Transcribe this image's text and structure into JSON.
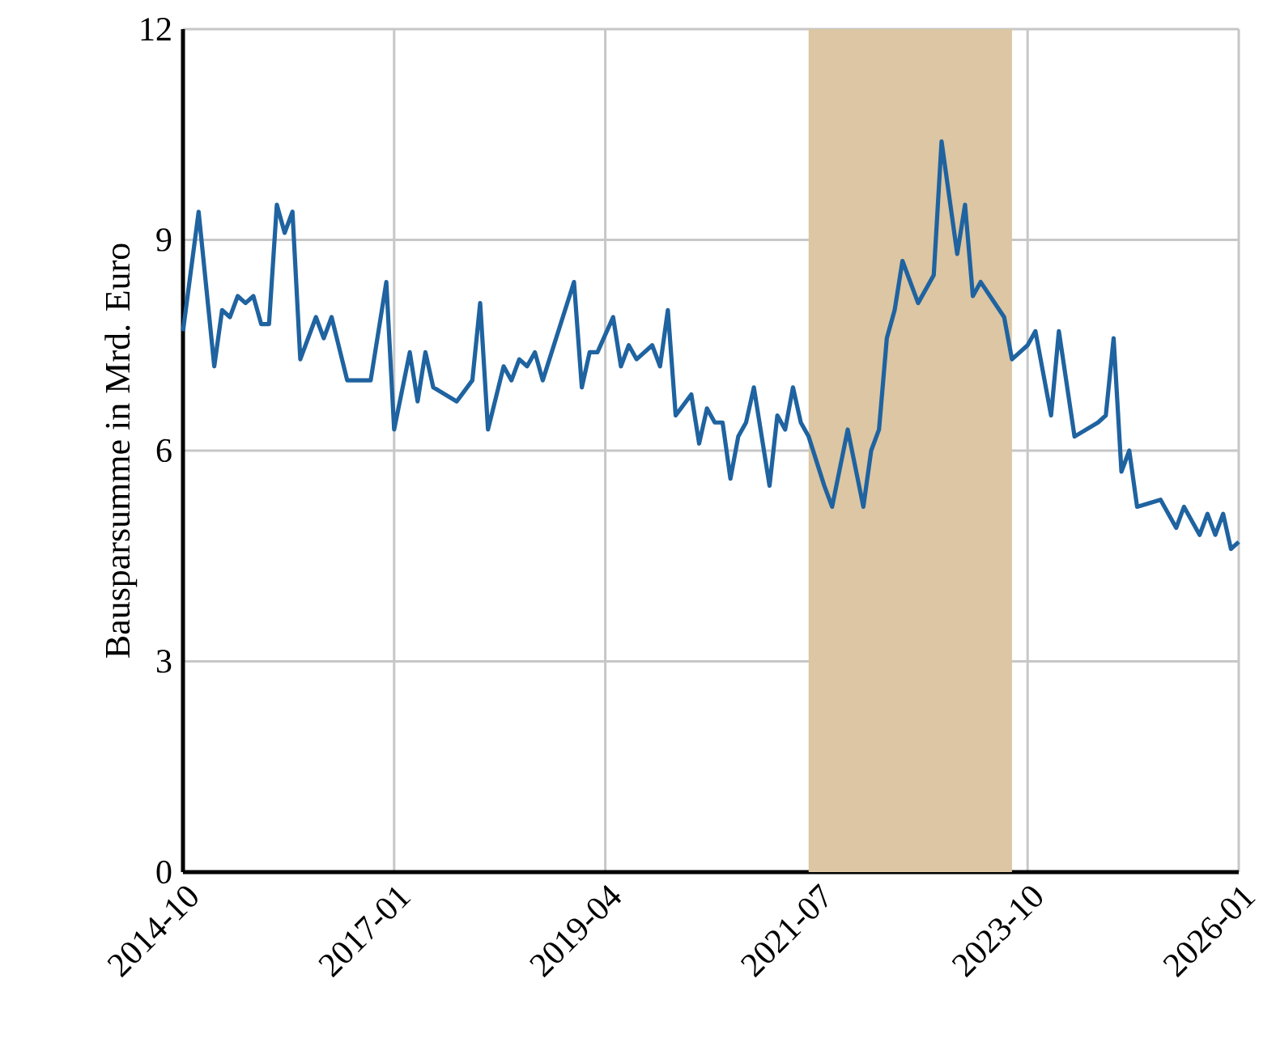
{
  "chart_data": {
    "type": "line",
    "ylabel": "Bausparsumme in Mrd. Euro",
    "x": [
      "2014-10",
      "2014-12",
      "2015-02",
      "2015-03",
      "2015-04",
      "2015-05",
      "2015-06",
      "2015-07",
      "2015-08",
      "2015-09",
      "2015-10",
      "2015-11",
      "2015-12",
      "2016-01",
      "2016-03",
      "2016-04",
      "2016-05",
      "2016-07",
      "2016-09",
      "2016-10",
      "2016-12",
      "2017-01",
      "2017-03",
      "2017-04",
      "2017-05",
      "2017-06",
      "2017-09",
      "2017-11",
      "2017-12",
      "2018-01",
      "2018-03",
      "2018-04",
      "2018-05",
      "2018-06",
      "2018-07",
      "2018-08",
      "2018-12",
      "2019-01",
      "2019-02",
      "2019-03",
      "2019-05",
      "2019-06",
      "2019-07",
      "2019-08",
      "2019-10",
      "2019-11",
      "2019-12",
      "2020-01",
      "2020-03",
      "2020-04",
      "2020-05",
      "2020-06",
      "2020-07",
      "2020-08",
      "2020-09",
      "2020-10",
      "2020-11",
      "2021-01",
      "2021-02",
      "2021-03",
      "2021-04",
      "2021-05",
      "2021-06",
      "2021-08",
      "2021-09",
      "2021-11",
      "2022-01",
      "2022-02",
      "2022-03",
      "2022-04",
      "2022-05",
      "2022-06",
      "2022-08",
      "2022-10",
      "2022-11",
      "2023-01",
      "2023-02",
      "2023-03",
      "2023-04",
      "2023-07",
      "2023-08",
      "2023-10",
      "2023-11",
      "2024-01",
      "2024-02",
      "2024-04",
      "2024-07",
      "2024-08",
      "2024-09",
      "2024-10",
      "2024-11",
      "2024-12",
      "2025-03",
      "2025-05",
      "2025-06",
      "2025-08",
      "2025-09",
      "2025-10",
      "2025-11",
      "2025-12",
      "2026-01"
    ],
    "series": [
      {
        "color": "#1f63a0",
        "values": [
          7.7,
          9.4,
          7.2,
          8.0,
          7.9,
          8.2,
          8.1,
          8.2,
          7.8,
          7.8,
          9.5,
          9.1,
          9.4,
          7.3,
          7.9,
          7.6,
          7.9,
          7.0,
          7.0,
          7.0,
          8.4,
          6.3,
          7.4,
          6.7,
          7.4,
          6.9,
          6.7,
          7.0,
          8.1,
          6.3,
          7.2,
          7.0,
          7.3,
          7.2,
          7.4,
          7.0,
          8.4,
          6.9,
          7.4,
          7.4,
          7.9,
          7.2,
          7.5,
          7.3,
          7.5,
          7.2,
          8.0,
          6.5,
          6.8,
          6.1,
          6.6,
          6.4,
          6.4,
          5.6,
          6.2,
          6.4,
          6.9,
          5.5,
          6.5,
          6.3,
          6.9,
          6.4,
          6.2,
          5.5,
          5.2,
          6.3,
          5.2,
          6.0,
          6.3,
          7.6,
          8.0,
          8.7,
          8.1,
          8.5,
          10.4,
          8.8,
          9.5,
          8.2,
          8.4,
          7.9,
          7.3,
          7.5,
          7.7,
          6.5,
          7.7,
          6.2,
          6.4,
          6.5,
          7.6,
          5.7,
          6.0,
          5.2,
          5.3,
          4.9,
          5.2,
          4.8,
          5.1,
          4.8,
          5.1,
          4.6,
          4.7
        ]
      }
    ],
    "xlim": [
      "2014-10",
      "2026-01"
    ],
    "xticks": [
      "2014-10",
      "2017-01",
      "2019-04",
      "2021-07",
      "2023-10",
      "2026-01"
    ],
    "ylim": [
      0,
      12
    ],
    "yticks": [
      0,
      3,
      6,
      9,
      12
    ],
    "grid": true,
    "line_style": "solid",
    "bands": [
      {
        "axis": "x",
        "from": "2021-06",
        "to": "2023-08",
        "color": "#dcc6a3"
      }
    ]
  }
}
